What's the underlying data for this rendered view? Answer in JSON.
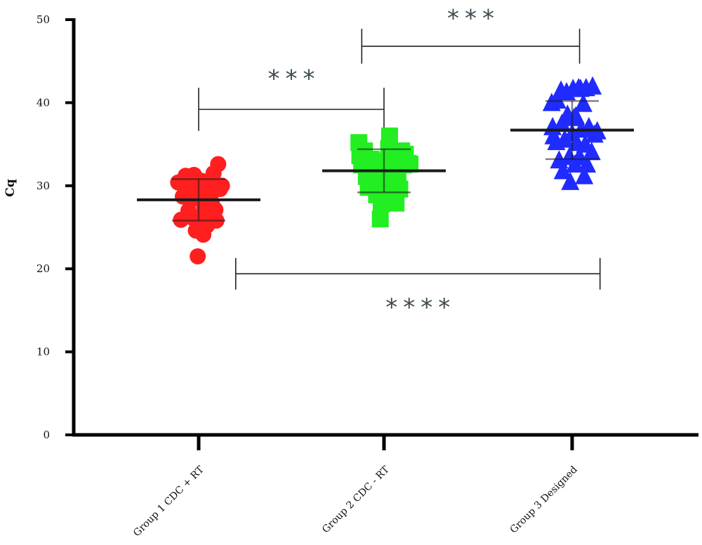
{
  "chart_data": {
    "type": "scatter",
    "ylabel": "Cq",
    "xlabel": "",
    "ylim": [
      0,
      50
    ],
    "yticks": [
      0,
      10,
      20,
      30,
      40,
      50
    ],
    "grid": false,
    "categories": [
      "Group 1 CDC + RT",
      "Group 2 CDC - RT",
      "Group 3 Designed"
    ],
    "series": [
      {
        "category": "Group 1 CDC + RT",
        "marker": "circle",
        "color": "#ff1f1f",
        "mean": 28.3,
        "sd": 2.5,
        "points": [
          [
            -0.22,
            30.4
          ],
          [
            -0.19,
            25.9
          ],
          [
            -0.17,
            28.7
          ],
          [
            -0.14,
            31.2
          ],
          [
            -0.11,
            27.0
          ],
          [
            -0.09,
            29.6
          ],
          [
            -0.06,
            26.1
          ],
          [
            -0.05,
            31.3
          ],
          [
            -0.03,
            24.6
          ],
          [
            -0.01,
            21.5
          ],
          [
            0.01,
            28.9
          ],
          [
            0.02,
            26.3
          ],
          [
            0.03,
            30.6
          ],
          [
            0.05,
            24.1
          ],
          [
            0.06,
            27.5
          ],
          [
            0.07,
            29.9
          ],
          [
            0.09,
            25.2
          ],
          [
            0.1,
            28.6
          ],
          [
            0.12,
            30.1
          ],
          [
            0.13,
            26.6
          ],
          [
            0.15,
            29.3
          ],
          [
            0.16,
            31.5
          ],
          [
            0.18,
            27.1
          ],
          [
            0.19,
            25.8
          ],
          [
            0.21,
            32.6
          ],
          [
            0.23,
            29.6
          ],
          [
            0.25,
            30.0
          ],
          [
            0.08,
            29.2
          ],
          [
            -0.07,
            28.4
          ],
          [
            0.14,
            28.0
          ]
        ]
      },
      {
        "category": "Group 2 CDC - RT",
        "marker": "square",
        "color": "#22ee22",
        "mean": 31.8,
        "sd": 2.6,
        "points": [
          [
            -0.27,
            35.2
          ],
          [
            -0.26,
            33.6
          ],
          [
            -0.24,
            32.5
          ],
          [
            -0.21,
            34.2
          ],
          [
            -0.19,
            31.1
          ],
          [
            -0.17,
            29.8
          ],
          [
            -0.14,
            33.2
          ],
          [
            -0.12,
            30.6
          ],
          [
            -0.1,
            32.1
          ],
          [
            -0.08,
            28.9
          ],
          [
            -0.06,
            31.5
          ],
          [
            -0.04,
            26.0
          ],
          [
            -0.03,
            27.8
          ],
          [
            -0.01,
            33.0
          ],
          [
            0.01,
            29.5
          ],
          [
            0.03,
            31.0
          ],
          [
            0.05,
            34.5
          ],
          [
            0.06,
            36.0
          ],
          [
            0.07,
            28.2
          ],
          [
            0.09,
            32.3
          ],
          [
            0.11,
            30.0
          ],
          [
            0.12,
            33.4
          ],
          [
            0.13,
            27.9
          ],
          [
            0.15,
            31.3
          ],
          [
            0.17,
            29.6
          ],
          [
            0.19,
            34.2
          ],
          [
            0.21,
            32.5
          ],
          [
            0.23,
            33.8
          ],
          [
            0.26,
            32.7
          ],
          [
            0.28,
            32.6
          ]
        ]
      },
      {
        "category": "Group 3 Designed",
        "marker": "triangle",
        "color": "#1f2bff",
        "mean": 36.7,
        "sd": 3.5,
        "points": [
          [
            -0.22,
            40.0
          ],
          [
            -0.21,
            37.1
          ],
          [
            -0.2,
            36.0
          ],
          [
            -0.17,
            35.3
          ],
          [
            -0.16,
            40.3
          ],
          [
            -0.14,
            33.1
          ],
          [
            -0.11,
            37.5
          ],
          [
            -0.1,
            31.8
          ],
          [
            -0.08,
            35.6
          ],
          [
            -0.06,
            41.3
          ],
          [
            -0.05,
            38.6
          ],
          [
            -0.03,
            33.5
          ],
          [
            -0.02,
            30.5
          ],
          [
            0.0,
            36.3
          ],
          [
            0.01,
            41.7
          ],
          [
            0.02,
            38.2
          ],
          [
            0.03,
            32.6
          ],
          [
            0.05,
            35.2
          ],
          [
            0.07,
            41.8
          ],
          [
            0.08,
            33.5
          ],
          [
            0.1,
            36.8
          ],
          [
            0.12,
            39.9
          ],
          [
            0.13,
            31.2
          ],
          [
            0.14,
            35.0
          ],
          [
            0.15,
            41.8
          ],
          [
            0.16,
            32.6
          ],
          [
            0.18,
            37.1
          ],
          [
            0.21,
            34.1
          ],
          [
            0.22,
            42.0
          ],
          [
            0.24,
            36.2
          ],
          [
            0.27,
            36.6
          ],
          [
            0.04,
            38.4
          ],
          [
            -0.12,
            41.5
          ],
          [
            0.09,
            41.7
          ]
        ]
      }
    ],
    "comparisons": [
      {
        "from": 0,
        "to": 1,
        "y": 39.2,
        "tick_to": 36.6,
        "label": "***",
        "label_y": 43.1
      },
      {
        "from": 0.88,
        "to": 2.04,
        "y": 46.8,
        "tick_to": 44.7,
        "label": "***",
        "label_y": 50.4
      },
      {
        "from": 0.2,
        "to": 2.15,
        "y": 19.4,
        "tick_to": 17.5,
        "label": "****",
        "label_y": 15.6
      }
    ]
  }
}
